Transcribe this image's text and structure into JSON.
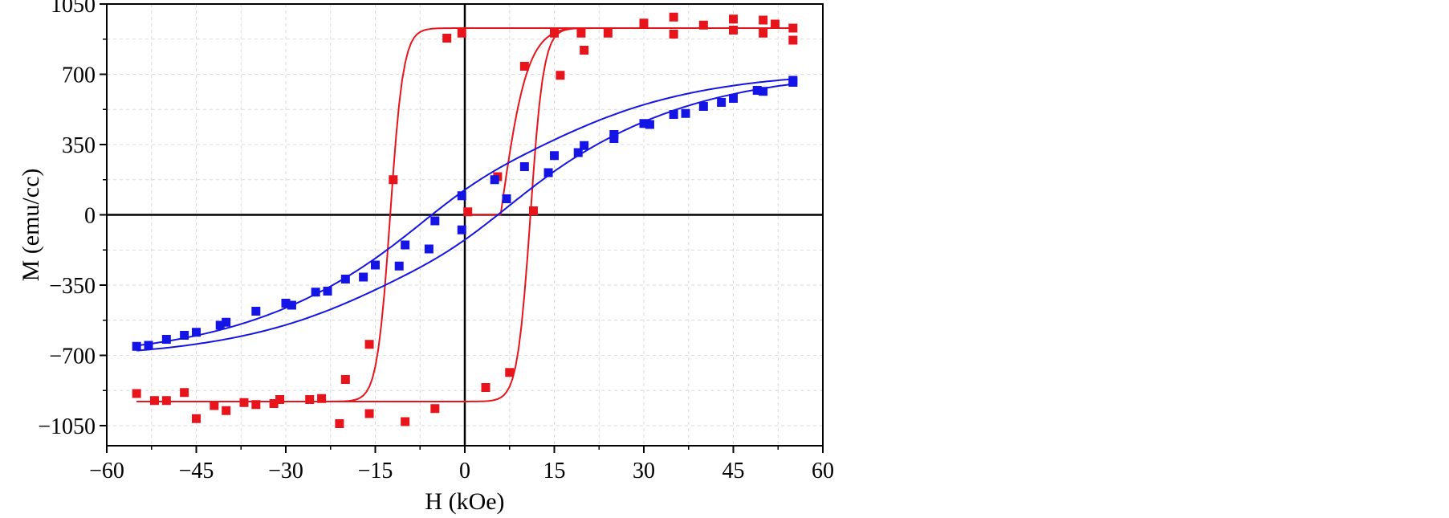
{
  "chart_data": {
    "type": "scatter",
    "title": "",
    "xlabel": "H (kOe)",
    "ylabel": "M (emu/cc)",
    "xlim": [
      -60,
      60
    ],
    "ylim": [
      -1150,
      1050
    ],
    "xticks": [
      -60,
      -45,
      -30,
      -15,
      0,
      15,
      30,
      45,
      60
    ],
    "xtick_labels": [
      "−60",
      "−45",
      "−30",
      "−15",
      "0",
      "15",
      "30",
      "45",
      "60"
    ],
    "yticks": [
      -1050,
      -700,
      -350,
      0,
      350,
      700,
      1050
    ],
    "ytick_labels": [
      "−1050",
      "−700",
      "−350",
      "0",
      "350",
      "700",
      "1050"
    ],
    "grid": true,
    "zero_lines": true,
    "series": [
      {
        "color": "#e8141b",
        "marker": "square",
        "points": [
          [
            -55,
            -890
          ],
          [
            -52,
            -925
          ],
          [
            -50,
            -925
          ],
          [
            -47,
            -885
          ],
          [
            -45,
            -1015
          ],
          [
            -42,
            -950
          ],
          [
            -40,
            -975
          ],
          [
            -37,
            -935
          ],
          [
            -35,
            -945
          ],
          [
            -32,
            -940
          ],
          [
            -31,
            -920
          ],
          [
            -26,
            -920
          ],
          [
            -24,
            -915
          ],
          [
            -21,
            -1040
          ],
          [
            -20,
            -820
          ],
          [
            -16,
            -990
          ],
          [
            -16,
            -645
          ],
          [
            -12,
            175
          ],
          [
            -10,
            -1030
          ],
          [
            -5,
            -965
          ],
          [
            -3,
            880
          ],
          [
            -0.5,
            905
          ],
          [
            0.5,
            15
          ],
          [
            3.5,
            -860
          ],
          [
            5.5,
            190
          ],
          [
            7.5,
            -785
          ],
          [
            10,
            740
          ],
          [
            11.5,
            20
          ],
          [
            15,
            905
          ],
          [
            16,
            695
          ],
          [
            19.5,
            905
          ],
          [
            20,
            820
          ],
          [
            24,
            905
          ],
          [
            30,
            955
          ],
          [
            35,
            985
          ],
          [
            35,
            900
          ],
          [
            40,
            945
          ],
          [
            45,
            975
          ],
          [
            45,
            920
          ],
          [
            50,
            970
          ],
          [
            50,
            905
          ],
          [
            52,
            950
          ],
          [
            55,
            930
          ],
          [
            55,
            870
          ]
        ]
      },
      {
        "color": "#1414e6",
        "marker": "square",
        "points": [
          [
            -55,
            -655
          ],
          [
            -53,
            -650
          ],
          [
            -50,
            -620
          ],
          [
            -47,
            -600
          ],
          [
            -45,
            -585
          ],
          [
            -41,
            -550
          ],
          [
            -40,
            -535
          ],
          [
            -35,
            -480
          ],
          [
            -30,
            -440
          ],
          [
            -29,
            -450
          ],
          [
            -25,
            -385
          ],
          [
            -23,
            -380
          ],
          [
            -20,
            -320
          ],
          [
            -17,
            -310
          ],
          [
            -15,
            -250
          ],
          [
            -11,
            -255
          ],
          [
            -10,
            -150
          ],
          [
            -6,
            -170
          ],
          [
            -5,
            -30
          ],
          [
            -0.5,
            -75
          ],
          [
            -0.5,
            95
          ],
          [
            5,
            175
          ],
          [
            7,
            80
          ],
          [
            10,
            240
          ],
          [
            14,
            210
          ],
          [
            15,
            295
          ],
          [
            19,
            310
          ],
          [
            20,
            345
          ],
          [
            25,
            380
          ],
          [
            25,
            400
          ],
          [
            30,
            455
          ],
          [
            31,
            450
          ],
          [
            35,
            500
          ],
          [
            37,
            505
          ],
          [
            40,
            540
          ],
          [
            43,
            560
          ],
          [
            45,
            580
          ],
          [
            49,
            620
          ],
          [
            50,
            615
          ],
          [
            55,
            660
          ],
          [
            55,
            670
          ]
        ]
      }
    ]
  }
}
